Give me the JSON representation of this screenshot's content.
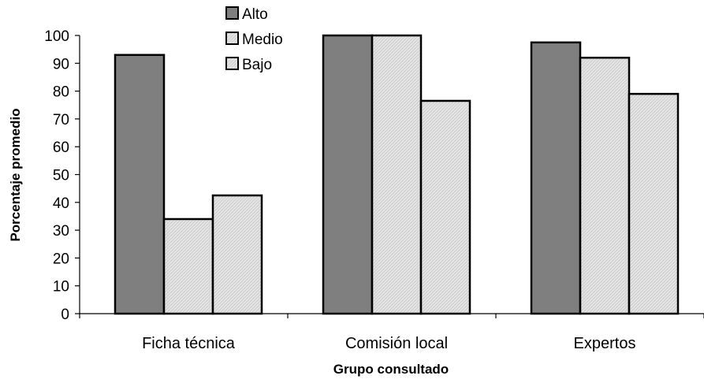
{
  "chart_data": {
    "type": "bar",
    "title": "",
    "xlabel": "Grupo consultado",
    "ylabel": "Porcentaje promedio",
    "ylim": [
      0,
      100
    ],
    "yticks": [
      "0",
      "10",
      "20",
      "30",
      "40",
      "50",
      "60",
      "70",
      "80",
      "90",
      "100"
    ],
    "categories": [
      "Ficha técnica",
      "Comisión local",
      "Expertos"
    ],
    "series": [
      {
        "name": "Alto",
        "values": [
          93,
          100,
          97.5
        ],
        "fill": "#7f7f7f",
        "pattern": "solid"
      },
      {
        "name": "Medio",
        "values": [
          34,
          100,
          92
        ],
        "fill": "#e0e0e0",
        "pattern": "hatch"
      },
      {
        "name": "Bajo",
        "values": [
          42.5,
          76.5,
          79
        ],
        "fill": "#e0e0e0",
        "pattern": "hatch"
      }
    ],
    "legend_position": "top",
    "grid": false
  }
}
